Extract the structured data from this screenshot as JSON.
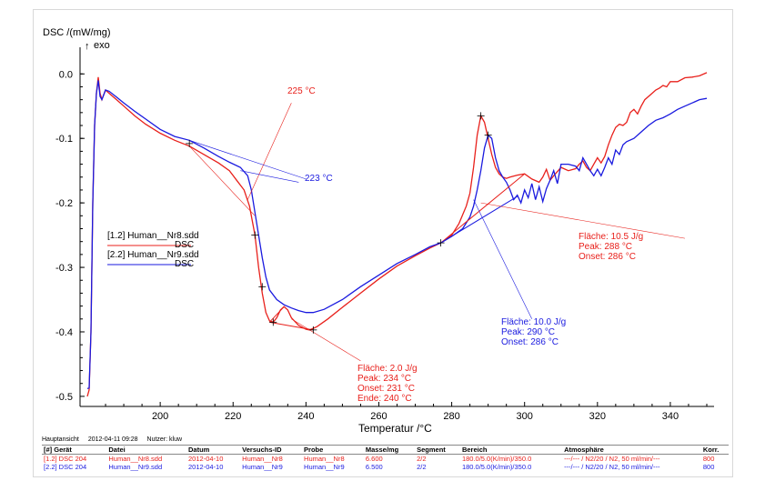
{
  "chart_data": {
    "type": "line",
    "ylabel": "DSC /(mW/mg)",
    "exo_label": "exo",
    "exo_arrow": "↑",
    "xlabel": "Temperatur /°C",
    "xlim": [
      178,
      352
    ],
    "ylim": [
      -0.51,
      0.03
    ],
    "x_ticks": [
      200,
      220,
      240,
      260,
      280,
      300,
      320,
      340
    ],
    "x_tick_labels": [
      "200",
      "220",
      "240",
      "260",
      "280",
      "300",
      "320",
      "340"
    ],
    "y_ticks": [
      0.0,
      -0.1,
      -0.2,
      -0.3,
      -0.4,
      -0.5
    ],
    "y_tick_labels": [
      "0.0",
      "-0.1",
      "-0.2",
      "-0.3",
      "-0.4",
      "-0.5"
    ],
    "grid": false,
    "legend_position": "left",
    "series": [
      {
        "name": "[1.2] Human__Nr8.sdd",
        "sub": "DSC",
        "color": "#e8201b",
        "points": [
          [
            180,
            -0.5
          ],
          [
            180.5,
            -0.49
          ],
          [
            181,
            -0.4
          ],
          [
            181.5,
            -0.2
          ],
          [
            182,
            -0.08
          ],
          [
            182.5,
            -0.03
          ],
          [
            183,
            -0.005
          ],
          [
            183.5,
            -0.03
          ],
          [
            184,
            -0.04
          ],
          [
            185,
            -0.025
          ],
          [
            186,
            -0.03
          ],
          [
            188,
            -0.04
          ],
          [
            190,
            -0.05
          ],
          [
            193,
            -0.065
          ],
          [
            196,
            -0.078
          ],
          [
            200,
            -0.092
          ],
          [
            204,
            -0.103
          ],
          [
            208,
            -0.112
          ],
          [
            212,
            -0.125
          ],
          [
            216,
            -0.138
          ],
          [
            219,
            -0.15
          ],
          [
            221,
            -0.165
          ],
          [
            223,
            -0.18
          ],
          [
            224.5,
            -0.205
          ],
          [
            226,
            -0.25
          ],
          [
            227,
            -0.3
          ],
          [
            228,
            -0.34
          ],
          [
            229,
            -0.37
          ],
          [
            230,
            -0.383
          ],
          [
            231,
            -0.385
          ],
          [
            232,
            -0.378
          ],
          [
            233,
            -0.366
          ],
          [
            234,
            -0.361
          ],
          [
            235,
            -0.366
          ],
          [
            236,
            -0.378
          ],
          [
            238,
            -0.39
          ],
          [
            240,
            -0.396
          ],
          [
            241,
            -0.397
          ],
          [
            243,
            -0.392
          ],
          [
            246,
            -0.38
          ],
          [
            250,
            -0.362
          ],
          [
            255,
            -0.34
          ],
          [
            260,
            -0.318
          ],
          [
            265,
            -0.298
          ],
          [
            270,
            -0.282
          ],
          [
            274,
            -0.27
          ],
          [
            277,
            -0.262
          ],
          [
            280,
            -0.25
          ],
          [
            282,
            -0.232
          ],
          [
            284,
            -0.205
          ],
          [
            285,
            -0.185
          ],
          [
            286,
            -0.145
          ],
          [
            287,
            -0.095
          ],
          [
            288,
            -0.065
          ],
          [
            289,
            -0.075
          ],
          [
            290,
            -0.1
          ],
          [
            291,
            -0.125
          ],
          [
            292,
            -0.145
          ],
          [
            293,
            -0.155
          ],
          [
            294,
            -0.16
          ],
          [
            295,
            -0.162
          ],
          [
            296,
            -0.16
          ],
          [
            298,
            -0.157
          ],
          [
            300,
            -0.155
          ],
          [
            302,
            -0.163
          ],
          [
            304,
            -0.168
          ],
          [
            305,
            -0.16
          ],
          [
            306,
            -0.148
          ],
          [
            307,
            -0.165
          ],
          [
            308,
            -0.158
          ],
          [
            310,
            -0.145
          ],
          [
            312,
            -0.15
          ],
          [
            314,
            -0.147
          ],
          [
            315,
            -0.14
          ],
          [
            316,
            -0.135
          ],
          [
            317,
            -0.145
          ],
          [
            318,
            -0.15
          ],
          [
            319,
            -0.14
          ],
          [
            320,
            -0.13
          ],
          [
            321,
            -0.138
          ],
          [
            322,
            -0.128
          ],
          [
            323,
            -0.11
          ],
          [
            324,
            -0.095
          ],
          [
            325,
            -0.083
          ],
          [
            326,
            -0.078
          ],
          [
            327,
            -0.08
          ],
          [
            328,
            -0.075
          ],
          [
            329,
            -0.06
          ],
          [
            330,
            -0.055
          ],
          [
            331,
            -0.062
          ],
          [
            332,
            -0.05
          ],
          [
            333,
            -0.04
          ],
          [
            334,
            -0.035
          ],
          [
            335,
            -0.03
          ],
          [
            336,
            -0.025
          ],
          [
            337,
            -0.022
          ],
          [
            338,
            -0.018
          ],
          [
            339,
            -0.02
          ],
          [
            340,
            -0.012
          ],
          [
            342,
            -0.012
          ],
          [
            344,
            -0.006
          ],
          [
            346,
            -0.005
          ],
          [
            348,
            -0.003
          ],
          [
            350,
            0.002
          ]
        ]
      },
      {
        "name": "[2.2] Human__Nr9.sdd",
        "sub": "DSC",
        "color": "#1a1adf",
        "points": [
          [
            180,
            -0.488
          ],
          [
            180.5,
            -0.487
          ],
          [
            181,
            -0.4
          ],
          [
            181.5,
            -0.2
          ],
          [
            182,
            -0.08
          ],
          [
            182.5,
            -0.03
          ],
          [
            183,
            -0.01
          ],
          [
            183.5,
            -0.035
          ],
          [
            184,
            -0.04
          ],
          [
            185,
            -0.025
          ],
          [
            186,
            -0.027
          ],
          [
            188,
            -0.036
          ],
          [
            190,
            -0.045
          ],
          [
            193,
            -0.058
          ],
          [
            196,
            -0.07
          ],
          [
            200,
            -0.086
          ],
          [
            204,
            -0.097
          ],
          [
            208,
            -0.103
          ],
          [
            212,
            -0.115
          ],
          [
            216,
            -0.128
          ],
          [
            219,
            -0.137
          ],
          [
            222,
            -0.145
          ],
          [
            224,
            -0.158
          ],
          [
            225,
            -0.18
          ],
          [
            226,
            -0.215
          ],
          [
            227,
            -0.25
          ],
          [
            228,
            -0.285
          ],
          [
            229,
            -0.315
          ],
          [
            230,
            -0.335
          ],
          [
            232,
            -0.35
          ],
          [
            234,
            -0.358
          ],
          [
            236,
            -0.363
          ],
          [
            238,
            -0.367
          ],
          [
            240,
            -0.37
          ],
          [
            242,
            -0.37
          ],
          [
            245,
            -0.365
          ],
          [
            250,
            -0.35
          ],
          [
            255,
            -0.33
          ],
          [
            260,
            -0.312
          ],
          [
            265,
            -0.294
          ],
          [
            270,
            -0.28
          ],
          [
            274,
            -0.268
          ],
          [
            277,
            -0.262
          ],
          [
            280,
            -0.252
          ],
          [
            283,
            -0.24
          ],
          [
            285,
            -0.222
          ],
          [
            286,
            -0.205
          ],
          [
            287,
            -0.18
          ],
          [
            288,
            -0.15
          ],
          [
            289,
            -0.115
          ],
          [
            290,
            -0.095
          ],
          [
            291,
            -0.1
          ],
          [
            292,
            -0.13
          ],
          [
            293,
            -0.15
          ],
          [
            294,
            -0.16
          ],
          [
            295,
            -0.168
          ],
          [
            296,
            -0.18
          ],
          [
            297,
            -0.195
          ],
          [
            298,
            -0.188
          ],
          [
            299,
            -0.2
          ],
          [
            300,
            -0.18
          ],
          [
            301,
            -0.192
          ],
          [
            302,
            -0.17
          ],
          [
            303,
            -0.195
          ],
          [
            304,
            -0.175
          ],
          [
            305,
            -0.198
          ],
          [
            306,
            -0.178
          ],
          [
            307,
            -0.165
          ],
          [
            308,
            -0.15
          ],
          [
            309,
            -0.17
          ],
          [
            310,
            -0.14
          ],
          [
            312,
            -0.14
          ],
          [
            314,
            -0.143
          ],
          [
            315,
            -0.15
          ],
          [
            316,
            -0.13
          ],
          [
            317,
            -0.14
          ],
          [
            318,
            -0.15
          ],
          [
            319,
            -0.158
          ],
          [
            320,
            -0.148
          ],
          [
            321,
            -0.158
          ],
          [
            322,
            -0.145
          ],
          [
            323,
            -0.13
          ],
          [
            324,
            -0.14
          ],
          [
            325,
            -0.118
          ],
          [
            326,
            -0.125
          ],
          [
            327,
            -0.11
          ],
          [
            328,
            -0.105
          ],
          [
            330,
            -0.1
          ],
          [
            332,
            -0.09
          ],
          [
            334,
            -0.08
          ],
          [
            336,
            -0.072
          ],
          [
            338,
            -0.068
          ],
          [
            340,
            -0.062
          ],
          [
            342,
            -0.055
          ],
          [
            344,
            -0.05
          ],
          [
            346,
            -0.045
          ],
          [
            348,
            -0.04
          ],
          [
            350,
            -0.038
          ]
        ]
      }
    ],
    "annotations": [
      {
        "id": "red-onset-label",
        "text": "225 °C",
        "color": "#e8201b"
      },
      {
        "id": "blue-onset-label",
        "text": "223 °C",
        "color": "#1a1adf"
      },
      {
        "id": "red-peak1",
        "lines": [
          "Fläche:  2.0 J/g",
          "Peak:     234 °C",
          "Onset:   231 °C",
          "Ende:    240 °C"
        ],
        "color": "#e8201b"
      },
      {
        "id": "red-peak2",
        "lines": [
          "Fläche:  10.5 J/g",
          "Peak:     288 °C",
          "Onset:   286 °C"
        ],
        "color": "#e8201b"
      },
      {
        "id": "blue-peak",
        "lines": [
          "Fläche:  10.0 J/g",
          "Peak:     290 °C",
          "Onset:   286 °C"
        ],
        "color": "#1a1adf"
      }
    ]
  },
  "footer": {
    "view": "Hauptansicht",
    "date": "2012-04-11 09:28",
    "user": "Nutzer: kluw",
    "columns": [
      "[#] Gerät",
      "Datei",
      "Datum",
      "Versuchs-ID",
      "Probe",
      "Masse/mg",
      "Segment",
      "Bereich",
      "Atmosphäre",
      "Korr."
    ],
    "rows": [
      {
        "color": "#e8201b",
        "cells": [
          "[1.2] DSC 204",
          "Human__Nr8.sdd",
          "2012-04-10",
          "Human__Nr8",
          "Human__Nr8",
          "6.600",
          "2/2",
          "180.0/5.0(K/min)/350.0",
          "---/--- / N2/20 / N2, 50 ml/min/---",
          "800"
        ]
      },
      {
        "color": "#1a1adf",
        "cells": [
          "[2.2] DSC 204",
          "Human__Nr9.sdd",
          "2012-04-10",
          "Human__Nr9",
          "Human__Nr9",
          "6.500",
          "2/2",
          "180.0/5.0(K/min)/350.0",
          "---/--- / N2/20 / N2, 50 ml/min/---",
          "800"
        ]
      }
    ]
  }
}
